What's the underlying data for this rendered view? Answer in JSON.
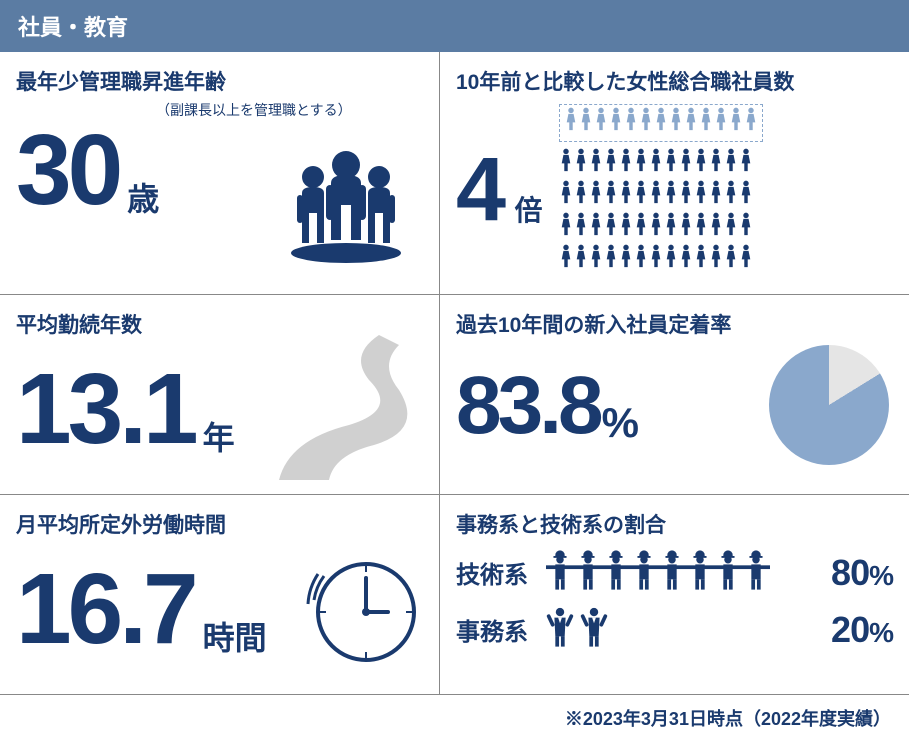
{
  "colors": {
    "header_bg": "#5b7ca3",
    "primary": "#1a3a6e",
    "icon_light": "#8aa8cc",
    "icon_gray": "#d0d0d0",
    "pie_fill": "#8aa8cc",
    "pie_empty": "#e5e5e5",
    "white": "#ffffff"
  },
  "header": {
    "title": "社員・教育"
  },
  "cells": {
    "youngest_mgr": {
      "title": "最年少管理職昇進年齢",
      "subtitle": "（副課長以上を管理職とする）",
      "value": "30",
      "unit": "歳",
      "value_fontsize": 100,
      "unit_fontsize": 32
    },
    "tenure": {
      "title": "平均勤続年数",
      "value": "13.1",
      "unit": "年",
      "value_fontsize": 100,
      "unit_fontsize": 32
    },
    "overtime": {
      "title": "月平均所定外労働時間",
      "value": "16.7",
      "unit": "時間",
      "value_fontsize": 100,
      "unit_fontsize": 32
    },
    "women": {
      "title": "10年前と比較した女性総合職社員数",
      "value": "4",
      "unit": "倍",
      "value_fontsize": 90,
      "unit_fontsize": 28,
      "top_row_count": 13,
      "bottom_rows": 4,
      "bottom_row_count": 13
    },
    "retention": {
      "title": "過去10年間の新入社員定着率",
      "value": "83.8",
      "unit": "%",
      "value_fontsize": 82,
      "unit_fontsize": 42,
      "pie_percent": 83.8
    },
    "ratio": {
      "title": "事務系と技術系の割合",
      "tech": {
        "label": "技術系",
        "count": 8,
        "pct": "80",
        "unit": "%"
      },
      "admin": {
        "label": "事務系",
        "count": 2,
        "pct": "20",
        "unit": "%"
      }
    }
  },
  "footnote": "※2023年3月31日時点（2022年度実績）"
}
